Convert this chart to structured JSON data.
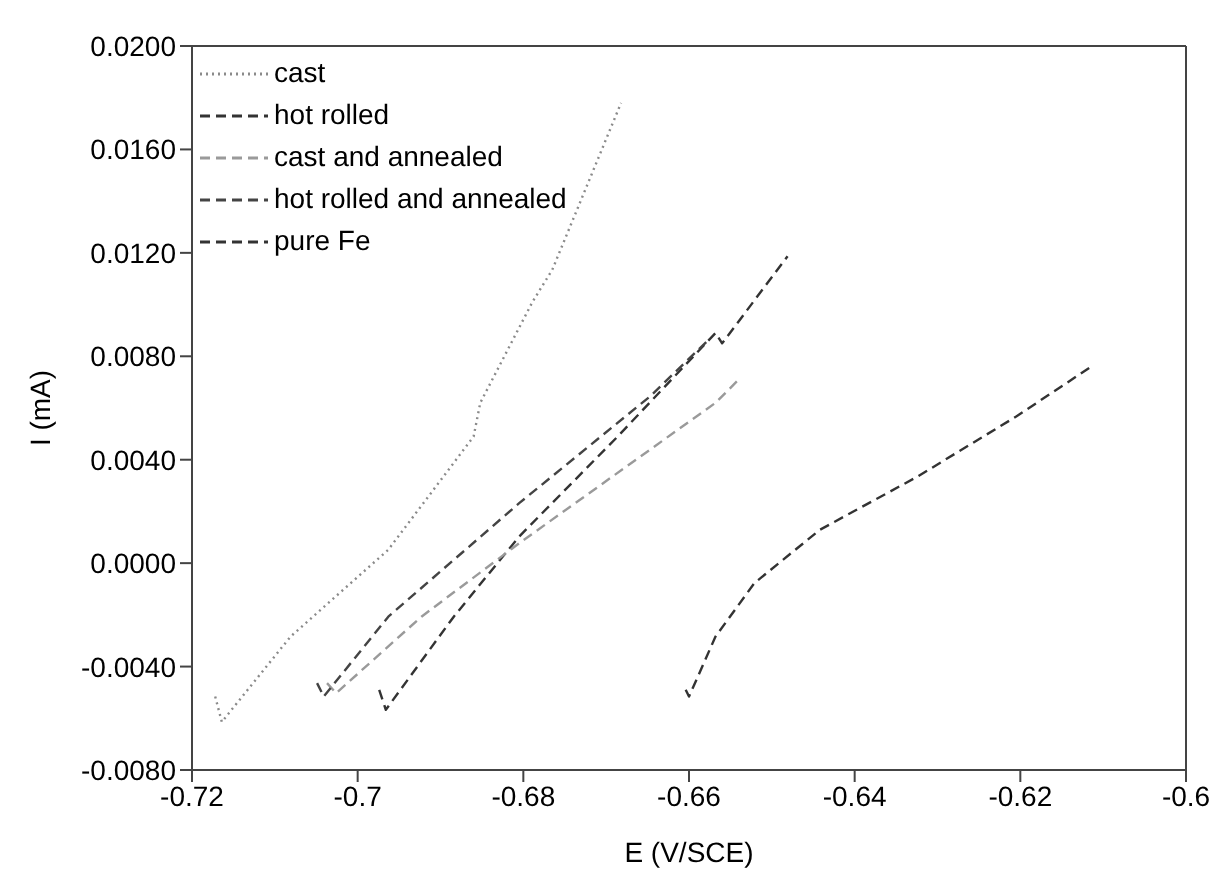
{
  "chart_data": {
    "type": "line",
    "xlabel": "E (V/SCE)",
    "ylabel": "I (mA)",
    "xlim": [
      -0.72,
      -0.6
    ],
    "xticks": [
      -0.72,
      -0.7,
      -0.68,
      -0.66,
      -0.64,
      -0.62,
      -0.6
    ],
    "ylim": [
      -0.008,
      0.02
    ],
    "yticks": [
      {
        "value": -0.008,
        "label": "-0.0080"
      },
      {
        "value": -0.004,
        "label": "-0.0040"
      },
      {
        "value": 0,
        "label": "0.0000"
      },
      {
        "value": 0.004,
        "label": "0.0040"
      },
      {
        "value": 0.008,
        "label": "0.0080"
      },
      {
        "value": 0.012,
        "label": "0.0120"
      },
      {
        "value": 0.016,
        "label": "0.0160"
      },
      {
        "value": 0.02,
        "label": "0.0200"
      }
    ],
    "grid": false,
    "legend": "top left",
    "marker": "none",
    "series": [
      {
        "name": "cast",
        "color": "#8a8a8a",
        "line_style": "dotted",
        "x": [
          -0.7172,
          -0.7164,
          -0.7081,
          -0.6963,
          -0.686,
          -0.6852,
          -0.6789,
          -0.6765,
          -0.6682
        ],
        "values": [
          -0.00516,
          -0.00614,
          -0.00284,
          0.00052,
          0.0049,
          0.0062,
          0.0101,
          0.01135,
          0.0178
        ]
      },
      {
        "name": "hot rolled",
        "color": "#333333",
        "line_style": "dashed",
        "x": [
          -0.6974,
          -0.6966,
          -0.6884,
          -0.6805,
          -0.6686,
          -0.6568,
          -0.656,
          -0.6481
        ],
        "values": [
          -0.0049,
          -0.00567,
          -0.00207,
          0.00103,
          0.0049,
          0.0089,
          0.0085,
          0.01187
        ]
      },
      {
        "name": "cast and annealed",
        "color": "#9a9a9a",
        "line_style": "dashed",
        "x": [
          -0.7037,
          -0.7026,
          -0.6923,
          -0.6805,
          -0.6568,
          -0.654
        ],
        "values": [
          -0.00464,
          -0.00503,
          -0.00207,
          0.00077,
          0.0062,
          0.0071
        ]
      },
      {
        "name": "hot rolled and annealed",
        "color": "#444444",
        "line_style": "dashed",
        "x": [
          -0.7049,
          -0.7041,
          -0.6963,
          -0.6805,
          -0.6647,
          -0.6576
        ],
        "values": [
          -0.00464,
          -0.00516,
          -0.00207,
          0.00232,
          0.00645,
          0.00865
        ]
      },
      {
        "name": "pure Fe",
        "color": "#333333",
        "line_style": "dashed",
        "x": [
          -0.6604,
          -0.66,
          -0.6568,
          -0.6521,
          -0.6442,
          -0.6324,
          -0.6205,
          -0.6114
        ],
        "values": [
          -0.0049,
          -0.00516,
          -0.00284,
          -0.00077,
          0.00129,
          0.00335,
          0.00567,
          0.00761
        ]
      }
    ]
  }
}
